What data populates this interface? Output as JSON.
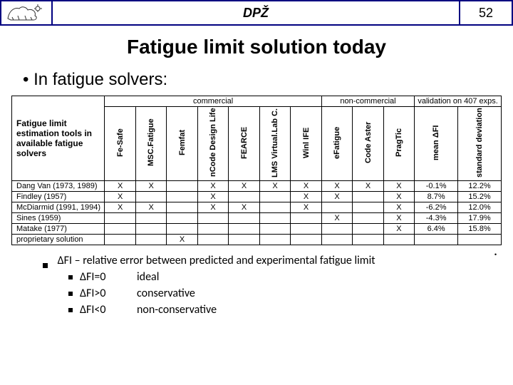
{
  "header": {
    "title": "DPŽ",
    "page": "52"
  },
  "slide": {
    "title": "Fatigue limit solution today",
    "bullet": "In fatigue solvers:"
  },
  "table": {
    "row_header": "Fatigue limit estimation tools in available fatigue solvers",
    "groups": {
      "commercial": "commercial",
      "noncommercial": "non-commercial",
      "validation": "validation on 407 exps."
    },
    "tools": {
      "commercial": [
        "Fe-Safe",
        "MSC.Fatigue",
        "Femfat",
        "nCode Design Life",
        "FEARCE",
        "LMS Virtual.Lab C. Durability",
        "Winl IFE"
      ],
      "noncommercial": [
        "eFatigue",
        "Code Aster",
        "PragTic"
      ],
      "validation": [
        "mean ΔFI",
        "standard deviation of ΔFI"
      ]
    },
    "rows": [
      {
        "label": "Dang Van (1973, 1989)",
        "c": [
          "X",
          "X",
          "",
          "X",
          "X",
          "X",
          "X"
        ],
        "n": [
          "X",
          "X",
          "X"
        ],
        "v": [
          "-0.1%",
          "12.2%"
        ]
      },
      {
        "label": "Findley (1957)",
        "c": [
          "X",
          "",
          "",
          "X",
          "",
          "",
          "X"
        ],
        "n": [
          "X",
          "",
          "X"
        ],
        "v": [
          "8.7%",
          "15.2%"
        ]
      },
      {
        "label": "McDiarmid (1991, 1994)",
        "c": [
          "X",
          "X",
          "",
          "X",
          "X",
          "",
          "X"
        ],
        "n": [
          "",
          "",
          "X"
        ],
        "v": [
          "-6.2%",
          "12.0%"
        ]
      },
      {
        "label": "Sines (1959)",
        "c": [
          "",
          "",
          "",
          "",
          "",
          "",
          ""
        ],
        "n": [
          "X",
          "",
          "X"
        ],
        "v": [
          "-4.3%",
          "17.9%"
        ]
      },
      {
        "label": "Matake (1977)",
        "c": [
          "",
          "",
          "",
          "",
          "",
          "",
          ""
        ],
        "n": [
          "",
          "",
          "X"
        ],
        "v": [
          "6.4%",
          "15.8%"
        ]
      },
      {
        "label": "proprietary solution",
        "c": [
          "",
          "",
          "X",
          "",
          "",
          "",
          ""
        ],
        "n": [
          "",
          "",
          ""
        ],
        "v": [
          "",
          ""
        ]
      }
    ]
  },
  "notes": {
    "main": "ΔFI – relative error between predicted and experimental fatigue limit",
    "subs": [
      {
        "k": "ΔFI=0",
        "v": "ideal"
      },
      {
        "k": "ΔFI>0",
        "v": "conservative"
      },
      {
        "k": "ΔFI<0",
        "v": "non-conservative"
      }
    ]
  }
}
